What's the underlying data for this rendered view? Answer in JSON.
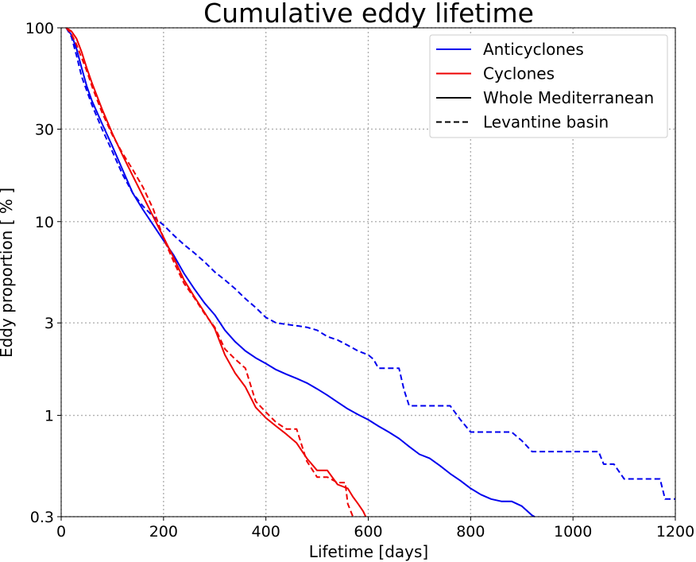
{
  "chart_data": {
    "type": "line",
    "title": "Cumulative eddy lifetime",
    "xlabel": "Lifetime [days]",
    "ylabel": "Eddy proportion [ % ]",
    "xlim": [
      0,
      1200
    ],
    "ylim": [
      0.3,
      100
    ],
    "yscale": "log",
    "grid": true,
    "legend_placement": "top-right",
    "xticks": [
      "0",
      "200",
      "400",
      "600",
      "800",
      "1000",
      "1200"
    ],
    "yticks": [
      {
        "value": 0.3,
        "label": "0.3"
      },
      {
        "value": 1,
        "label": "1"
      },
      {
        "value": 3,
        "label": "3"
      },
      {
        "value": 10,
        "label": "10"
      },
      {
        "value": 30,
        "label": "30"
      },
      {
        "value": 100,
        "label": "100"
      }
    ],
    "legend": [
      {
        "label": "Anticyclones",
        "color": "#0000ee",
        "dash": "solid"
      },
      {
        "label": "Cyclones",
        "color": "#ee0000",
        "dash": "solid"
      },
      {
        "label": "Whole Mediterranean",
        "color": "#000000",
        "dash": "solid"
      },
      {
        "label": "Levantine basin",
        "color": "#000000",
        "dash": "dashed"
      }
    ],
    "series": [
      {
        "name": "Anticyclones, Whole Mediterranean",
        "color": "#0000ee",
        "dash": "solid",
        "points": [
          [
            10,
            100
          ],
          [
            20,
            92
          ],
          [
            30,
            78
          ],
          [
            40,
            62
          ],
          [
            50,
            50
          ],
          [
            60,
            42
          ],
          [
            80,
            32
          ],
          [
            100,
            24.5
          ],
          [
            120,
            18.5
          ],
          [
            140,
            14
          ],
          [
            160,
            11.5
          ],
          [
            180,
            9.6
          ],
          [
            200,
            8
          ],
          [
            220,
            6.7
          ],
          [
            240,
            5.4
          ],
          [
            260,
            4.5
          ],
          [
            280,
            3.8
          ],
          [
            300,
            3.3
          ],
          [
            320,
            2.75
          ],
          [
            340,
            2.4
          ],
          [
            360,
            2.15
          ],
          [
            380,
            1.98
          ],
          [
            400,
            1.85
          ],
          [
            420,
            1.72
          ],
          [
            440,
            1.63
          ],
          [
            460,
            1.55
          ],
          [
            480,
            1.47
          ],
          [
            500,
            1.37
          ],
          [
            520,
            1.27
          ],
          [
            540,
            1.17
          ],
          [
            560,
            1.08
          ],
          [
            580,
            1.01
          ],
          [
            600,
            0.95
          ],
          [
            620,
            0.88
          ],
          [
            640,
            0.82
          ],
          [
            660,
            0.76
          ],
          [
            680,
            0.69
          ],
          [
            700,
            0.63
          ],
          [
            720,
            0.6
          ],
          [
            740,
            0.55
          ],
          [
            760,
            0.5
          ],
          [
            780,
            0.46
          ],
          [
            800,
            0.42
          ],
          [
            820,
            0.39
          ],
          [
            840,
            0.37
          ],
          [
            860,
            0.36
          ],
          [
            880,
            0.36
          ],
          [
            900,
            0.34
          ],
          [
            920,
            0.305
          ],
          [
            925,
            0.3
          ]
        ]
      },
      {
        "name": "Anticyclones, Levantine basin",
        "color": "#0000ee",
        "dash": "dashed",
        "points": [
          [
            10,
            100
          ],
          [
            20,
            90
          ],
          [
            30,
            72
          ],
          [
            40,
            56
          ],
          [
            60,
            40
          ],
          [
            80,
            30
          ],
          [
            100,
            23
          ],
          [
            120,
            17.5
          ],
          [
            140,
            14
          ],
          [
            160,
            12
          ],
          [
            180,
            10.6
          ],
          [
            200,
            9.6
          ],
          [
            220,
            8.5
          ],
          [
            240,
            7.6
          ],
          [
            260,
            6.9
          ],
          [
            280,
            6.2
          ],
          [
            300,
            5.5
          ],
          [
            320,
            5
          ],
          [
            340,
            4.5
          ],
          [
            360,
            4
          ],
          [
            380,
            3.6
          ],
          [
            400,
            3.2
          ],
          [
            420,
            3
          ],
          [
            440,
            2.95
          ],
          [
            460,
            2.9
          ],
          [
            480,
            2.85
          ],
          [
            500,
            2.75
          ],
          [
            520,
            2.55
          ],
          [
            540,
            2.45
          ],
          [
            560,
            2.3
          ],
          [
            580,
            2.15
          ],
          [
            600,
            2.05
          ],
          [
            610,
            1.95
          ],
          [
            620,
            1.75
          ],
          [
            640,
            1.75
          ],
          [
            660,
            1.75
          ],
          [
            670,
            1.35
          ],
          [
            680,
            1.12
          ],
          [
            700,
            1.12
          ],
          [
            740,
            1.12
          ],
          [
            760,
            1.12
          ],
          [
            780,
            0.95
          ],
          [
            800,
            0.82
          ],
          [
            840,
            0.82
          ],
          [
            880,
            0.82
          ],
          [
            900,
            0.74
          ],
          [
            920,
            0.65
          ],
          [
            960,
            0.65
          ],
          [
            1000,
            0.65
          ],
          [
            1050,
            0.65
          ],
          [
            1060,
            0.56
          ],
          [
            1080,
            0.56
          ],
          [
            1100,
            0.47
          ],
          [
            1140,
            0.47
          ],
          [
            1170,
            0.47
          ],
          [
            1180,
            0.37
          ],
          [
            1200,
            0.37
          ]
        ]
      },
      {
        "name": "Cyclones, Whole Mediterranean",
        "color": "#ee0000",
        "dash": "solid",
        "points": [
          [
            10,
            100
          ],
          [
            20,
            96
          ],
          [
            30,
            88
          ],
          [
            40,
            75
          ],
          [
            50,
            62
          ],
          [
            60,
            52
          ],
          [
            80,
            38
          ],
          [
            100,
            28.5
          ],
          [
            120,
            22
          ],
          [
            140,
            17.2
          ],
          [
            160,
            13.5
          ],
          [
            180,
            10.6
          ],
          [
            200,
            8.3
          ],
          [
            220,
            6.5
          ],
          [
            240,
            5
          ],
          [
            260,
            4.1
          ],
          [
            280,
            3.4
          ],
          [
            300,
            2.8
          ],
          [
            320,
            2.05
          ],
          [
            340,
            1.65
          ],
          [
            360,
            1.4
          ],
          [
            380,
            1.1
          ],
          [
            400,
            0.97
          ],
          [
            420,
            0.88
          ],
          [
            440,
            0.8
          ],
          [
            460,
            0.72
          ],
          [
            480,
            0.6
          ],
          [
            500,
            0.52
          ],
          [
            520,
            0.52
          ],
          [
            540,
            0.44
          ],
          [
            560,
            0.42
          ],
          [
            570,
            0.38
          ],
          [
            580,
            0.35
          ],
          [
            590,
            0.32
          ],
          [
            595,
            0.3
          ]
        ]
      },
      {
        "name": "Cyclones, Levantine basin",
        "color": "#ee0000",
        "dash": "dashed",
        "points": [
          [
            10,
            100
          ],
          [
            20,
            93
          ],
          [
            30,
            82
          ],
          [
            40,
            70
          ],
          [
            50,
            60
          ],
          [
            60,
            50
          ],
          [
            80,
            36.5
          ],
          [
            100,
            28
          ],
          [
            120,
            22.5
          ],
          [
            140,
            18.5
          ],
          [
            160,
            15
          ],
          [
            180,
            11.6
          ],
          [
            200,
            8.2
          ],
          [
            220,
            6.2
          ],
          [
            240,
            4.8
          ],
          [
            260,
            4.05
          ],
          [
            280,
            3.35
          ],
          [
            300,
            2.85
          ],
          [
            320,
            2.2
          ],
          [
            340,
            1.95
          ],
          [
            360,
            1.75
          ],
          [
            380,
            1.18
          ],
          [
            400,
            1.04
          ],
          [
            420,
            0.92
          ],
          [
            440,
            0.85
          ],
          [
            460,
            0.85
          ],
          [
            480,
            0.58
          ],
          [
            500,
            0.48
          ],
          [
            520,
            0.48
          ],
          [
            540,
            0.45
          ],
          [
            555,
            0.45
          ],
          [
            560,
            0.35
          ],
          [
            570,
            0.3
          ]
        ]
      }
    ]
  }
}
